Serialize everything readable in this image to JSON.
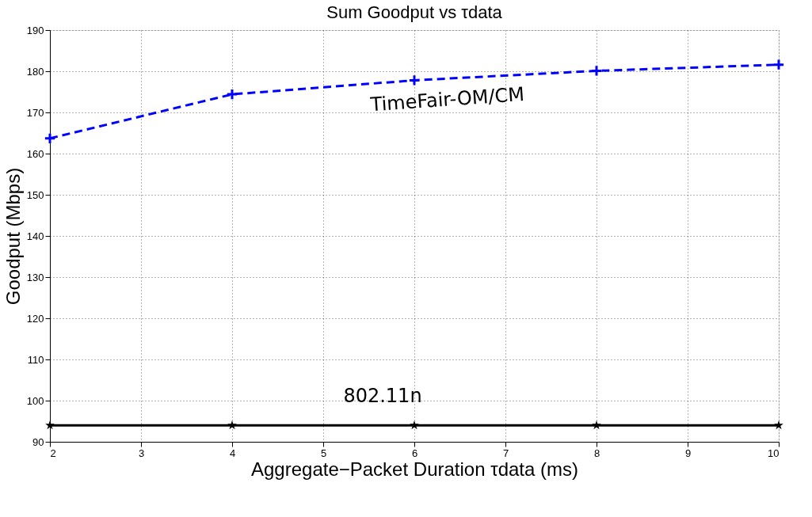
{
  "chart_data": {
    "type": "line",
    "title": "Sum Goodput vs τdata",
    "xlabel": "Aggregate−Packet Duration τdata (ms)",
    "ylabel": "Goodput (Mbps)",
    "x": [
      2,
      4,
      6,
      8,
      10
    ],
    "series": [
      {
        "name": "TimeFair-OM/CM",
        "color": "#0000ff",
        "values": [
          163.7,
          174.4,
          177.8,
          180.1,
          181.6
        ],
        "marker": "cross",
        "line_style": "dashed"
      },
      {
        "name": "802.11n",
        "color": "#000000",
        "values": [
          94,
          94,
          94,
          94,
          94
        ],
        "marker": "star",
        "line_style": "solid"
      }
    ],
    "xlim": [
      2,
      10
    ],
    "xticks": [
      2,
      3,
      4,
      5,
      6,
      7,
      8,
      9,
      10
    ],
    "ylim": [
      90,
      190
    ],
    "yticks": [
      90,
      100,
      110,
      120,
      130,
      140,
      150,
      160,
      170,
      180,
      190
    ],
    "grid": true
  }
}
